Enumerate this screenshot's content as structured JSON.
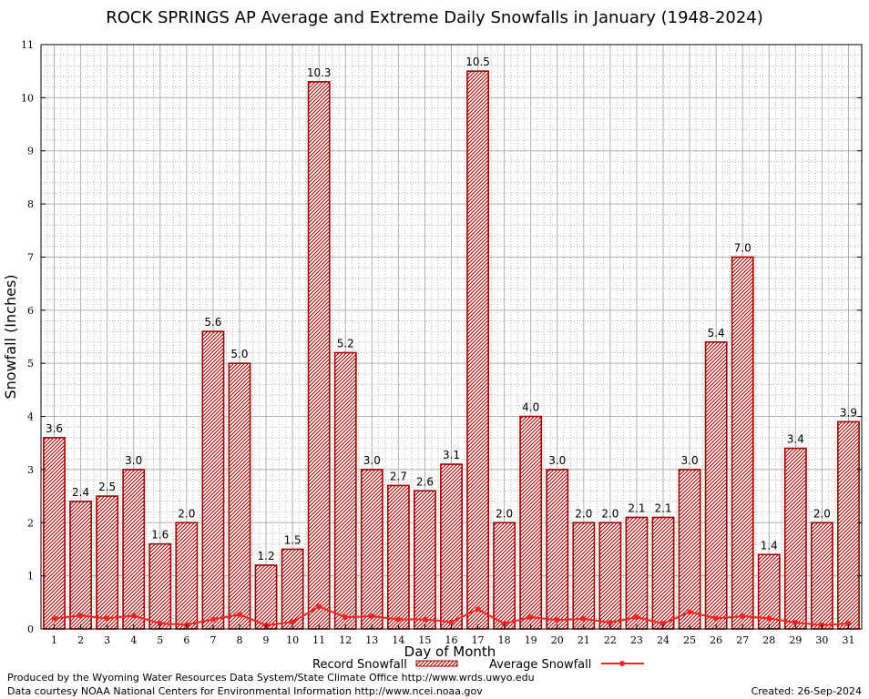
{
  "chart_data": {
    "type": "bar",
    "title": "ROCK SPRINGS AP Average and Extreme Daily Snowfalls in January (1948-2024)",
    "xlabel": "Day of Month",
    "ylabel": "Snowfall (Inches)",
    "ylim": [
      0,
      11
    ],
    "yticks": [
      "0",
      "1",
      "2",
      "3",
      "4",
      "5",
      "6",
      "7",
      "8",
      "9",
      "10",
      "11"
    ],
    "categories": [
      "1",
      "2",
      "3",
      "4",
      "5",
      "6",
      "7",
      "8",
      "9",
      "10",
      "11",
      "12",
      "13",
      "14",
      "15",
      "16",
      "17",
      "18",
      "19",
      "20",
      "21",
      "22",
      "23",
      "24",
      "25",
      "26",
      "27",
      "28",
      "29",
      "30",
      "31"
    ],
    "series": [
      {
        "name": "Record Snowfall",
        "kind": "bar",
        "color": "#a00000",
        "values": [
          3.6,
          2.4,
          2.5,
          3.0,
          1.6,
          2.0,
          5.6,
          5.0,
          1.2,
          1.5,
          10.3,
          5.2,
          3.0,
          2.7,
          2.6,
          3.1,
          10.5,
          2.0,
          4.0,
          3.0,
          2.0,
          2.0,
          2.1,
          2.1,
          3.0,
          5.4,
          7.0,
          1.4,
          3.4,
          2.0,
          3.9
        ],
        "labels": [
          "3.6",
          "2.4",
          "2.5",
          "3.0",
          "1.6",
          "2.0",
          "5.6",
          "5.0",
          "1.2",
          "1.5",
          "10.3",
          "5.2",
          "3.0",
          "2.7",
          "2.6",
          "3.1",
          "10.5",
          "2.0",
          "4.0",
          "3.0",
          "2.0",
          "2.0",
          "2.1",
          "2.1",
          "3.0",
          "5.4",
          "7.0",
          "1.4",
          "3.4",
          "2.0",
          "3.9"
        ]
      },
      {
        "name": "Average Snowfall",
        "kind": "line",
        "color": "#ff2020",
        "values": [
          0.2,
          0.25,
          0.2,
          0.25,
          0.1,
          0.08,
          0.18,
          0.27,
          0.07,
          0.13,
          0.42,
          0.22,
          0.24,
          0.18,
          0.18,
          0.13,
          0.37,
          0.1,
          0.22,
          0.17,
          0.19,
          0.12,
          0.22,
          0.1,
          0.32,
          0.2,
          0.24,
          0.2,
          0.12,
          0.07,
          0.1
        ]
      }
    ],
    "grid": true,
    "legend_position": "bottom"
  },
  "footer": {
    "line1": "Produced by the Wyoming Water Resources Data System/State Climate Office http://www.wrds.uwyo.edu",
    "line2": "Data courtesy NOAA National Centers for Environmental Information http://www.ncei.noaa.gov",
    "created": "Created:  26-Sep-2024"
  }
}
